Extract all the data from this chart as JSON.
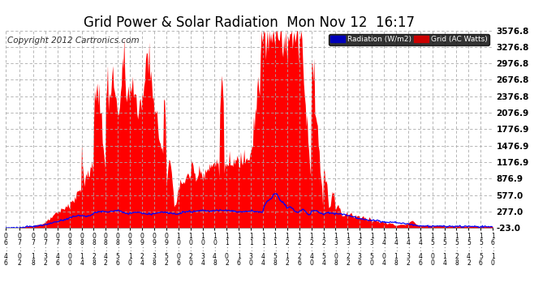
{
  "title": "Grid Power & Solar Radiation  Mon Nov 12  16:17",
  "copyright": "Copyright 2012 Cartronics.com",
  "legend_radiation": "Radiation (W/m2)",
  "legend_grid": "Grid (AC Watts)",
  "legend_radiation_color": "#0000ff",
  "legend_grid_color": "#ff0000",
  "legend_radiation_bg": "#0000cc",
  "legend_grid_bg": "#cc0000",
  "yticks": [
    -23.0,
    277.0,
    577.0,
    876.9,
    1176.9,
    1476.9,
    1776.9,
    2076.9,
    2376.8,
    2676.8,
    2976.8,
    3276.8,
    3576.8
  ],
  "ylim": [
    -23.0,
    3576.8
  ],
  "background_color": "#ffffff",
  "plot_bg_color": "#ffffff",
  "grid_color": "#aaaaaa",
  "fill_color": "#ff0000",
  "line_color": "#0000ff",
  "title_fontsize": 12,
  "copyright_fontsize": 7.5,
  "tick_labels": [
    "06:46",
    "07:02",
    "07:18",
    "07:32",
    "07:46",
    "08:00",
    "08:14",
    "08:28",
    "08:42",
    "08:56",
    "09:10",
    "09:24",
    "09:38",
    "09:52",
    "10:06",
    "10:20",
    "10:34",
    "10:48",
    "11:02",
    "11:16",
    "11:30",
    "11:44",
    "11:58",
    "12:12",
    "12:26",
    "12:40",
    "12:54",
    "13:08",
    "13:22",
    "13:36",
    "13:50",
    "14:04",
    "14:18",
    "14:32",
    "14:46",
    "15:00",
    "15:14",
    "15:28",
    "15:42",
    "15:56",
    "16:10"
  ]
}
